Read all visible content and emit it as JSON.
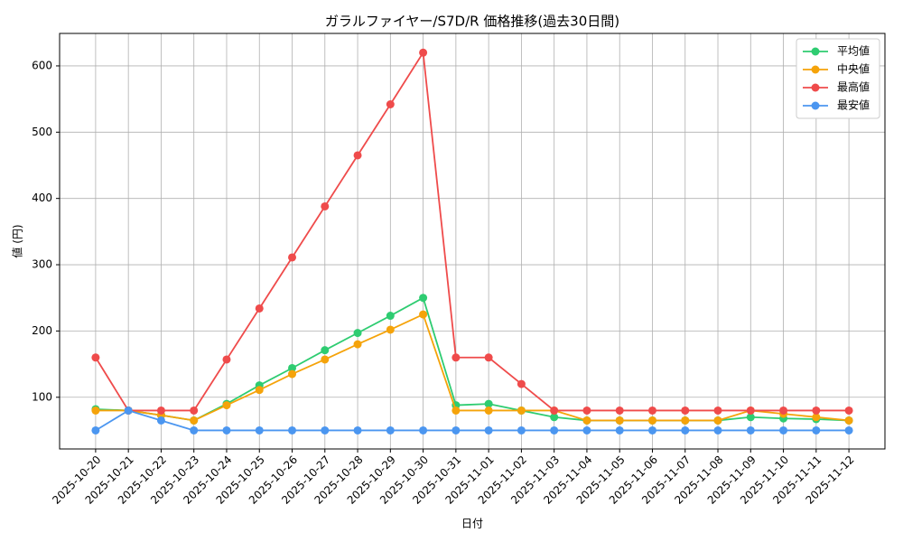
{
  "chart_data": {
    "type": "line",
    "title": "ガラルファイヤー/S7D/R 価格推移(過去30日間)",
    "x_label": "日付",
    "y_label": "値 (円)",
    "categories": [
      "2025-10-20",
      "2025-10-21",
      "2025-10-22",
      "2025-10-23",
      "2025-10-24",
      "2025-10-25",
      "2025-10-26",
      "2025-10-27",
      "2025-10-28",
      "2025-10-29",
      "2025-10-30",
      "2025-10-31",
      "2025-11-01",
      "2025-11-02",
      "2025-11-03",
      "2025-11-04",
      "2025-11-05",
      "2025-11-06",
      "2025-11-07",
      "2025-11-08",
      "2025-11-09",
      "2025-11-10",
      "2025-11-11",
      "2025-11-12"
    ],
    "series": [
      {
        "name": "平均値",
        "color": "#2ecc71",
        "values": [
          82,
          80,
          73,
          65,
          90,
          118,
          144,
          171,
          197,
          223,
          250,
          88,
          90,
          80,
          70,
          65,
          65,
          65,
          65,
          65,
          70,
          68,
          67,
          65
        ]
      },
      {
        "name": "中央値",
        "color": "#f5a30a",
        "values": [
          80,
          80,
          73,
          65,
          88,
          111,
          135,
          157,
          180,
          202,
          225,
          80,
          80,
          80,
          80,
          65,
          65,
          65,
          65,
          65,
          80,
          75,
          70,
          65
        ]
      },
      {
        "name": "最高値",
        "color": "#ef4b4b",
        "values": [
          160,
          80,
          80,
          80,
          157,
          234,
          311,
          388,
          465,
          542,
          620,
          160,
          160,
          120,
          80,
          80,
          80,
          80,
          80,
          80,
          80,
          80,
          80,
          80
        ]
      },
      {
        "name": "最安値",
        "color": "#4b96f0",
        "values": [
          50,
          80,
          65,
          50,
          50,
          50,
          50,
          50,
          50,
          50,
          50,
          50,
          50,
          50,
          50,
          50,
          50,
          50,
          50,
          50,
          50,
          50,
          50,
          50
        ]
      }
    ],
    "ylim": [
      22,
      649
    ],
    "yticks": [
      100,
      200,
      300,
      400,
      500,
      600
    ],
    "grid": true,
    "legend": "upper right"
  }
}
